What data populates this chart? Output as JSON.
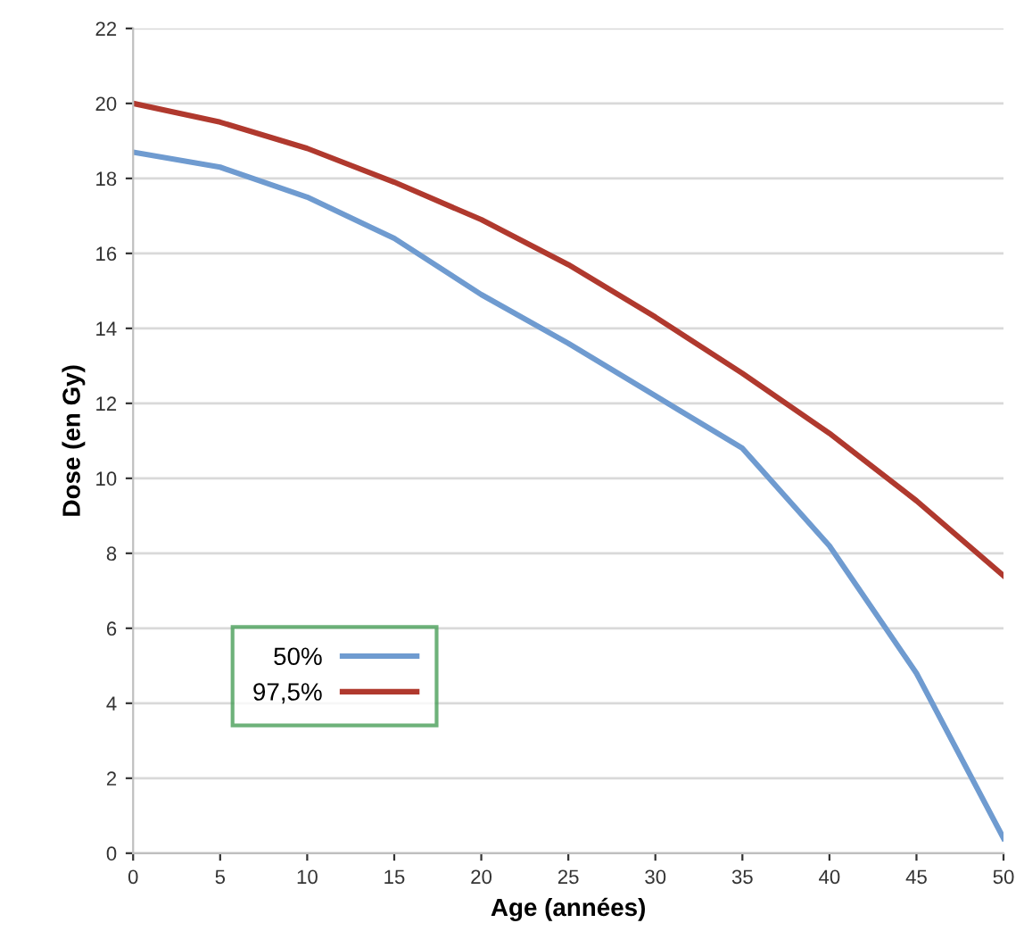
{
  "chart_data": {
    "type": "line",
    "xlabel": "Age (années)",
    "ylabel": "Dose (en Gy)",
    "x": [
      0,
      5,
      10,
      15,
      20,
      25,
      30,
      35,
      40,
      45,
      50
    ],
    "series": [
      {
        "name": "50%",
        "color": "#6f9bd0",
        "values": [
          18.7,
          18.3,
          17.5,
          16.4,
          14.9,
          13.6,
          12.2,
          10.8,
          8.2,
          4.8,
          0.4
        ]
      },
      {
        "name": "97,5%",
        "color": "#b0392e",
        "values": [
          20.0,
          19.5,
          18.8,
          17.9,
          16.9,
          15.7,
          14.3,
          12.8,
          11.2,
          9.4,
          7.4
        ]
      }
    ],
    "xlim": [
      0,
      50
    ],
    "xticks": [
      0,
      5,
      10,
      15,
      20,
      25,
      30,
      35,
      40,
      45,
      50
    ],
    "ylim": [
      0,
      22
    ],
    "yticks": [
      0,
      2,
      4,
      6,
      8,
      10,
      12,
      14,
      16,
      18,
      20,
      22
    ],
    "grid": "y",
    "legend": "bottom left",
    "marker": "none",
    "line_style": "solid"
  }
}
